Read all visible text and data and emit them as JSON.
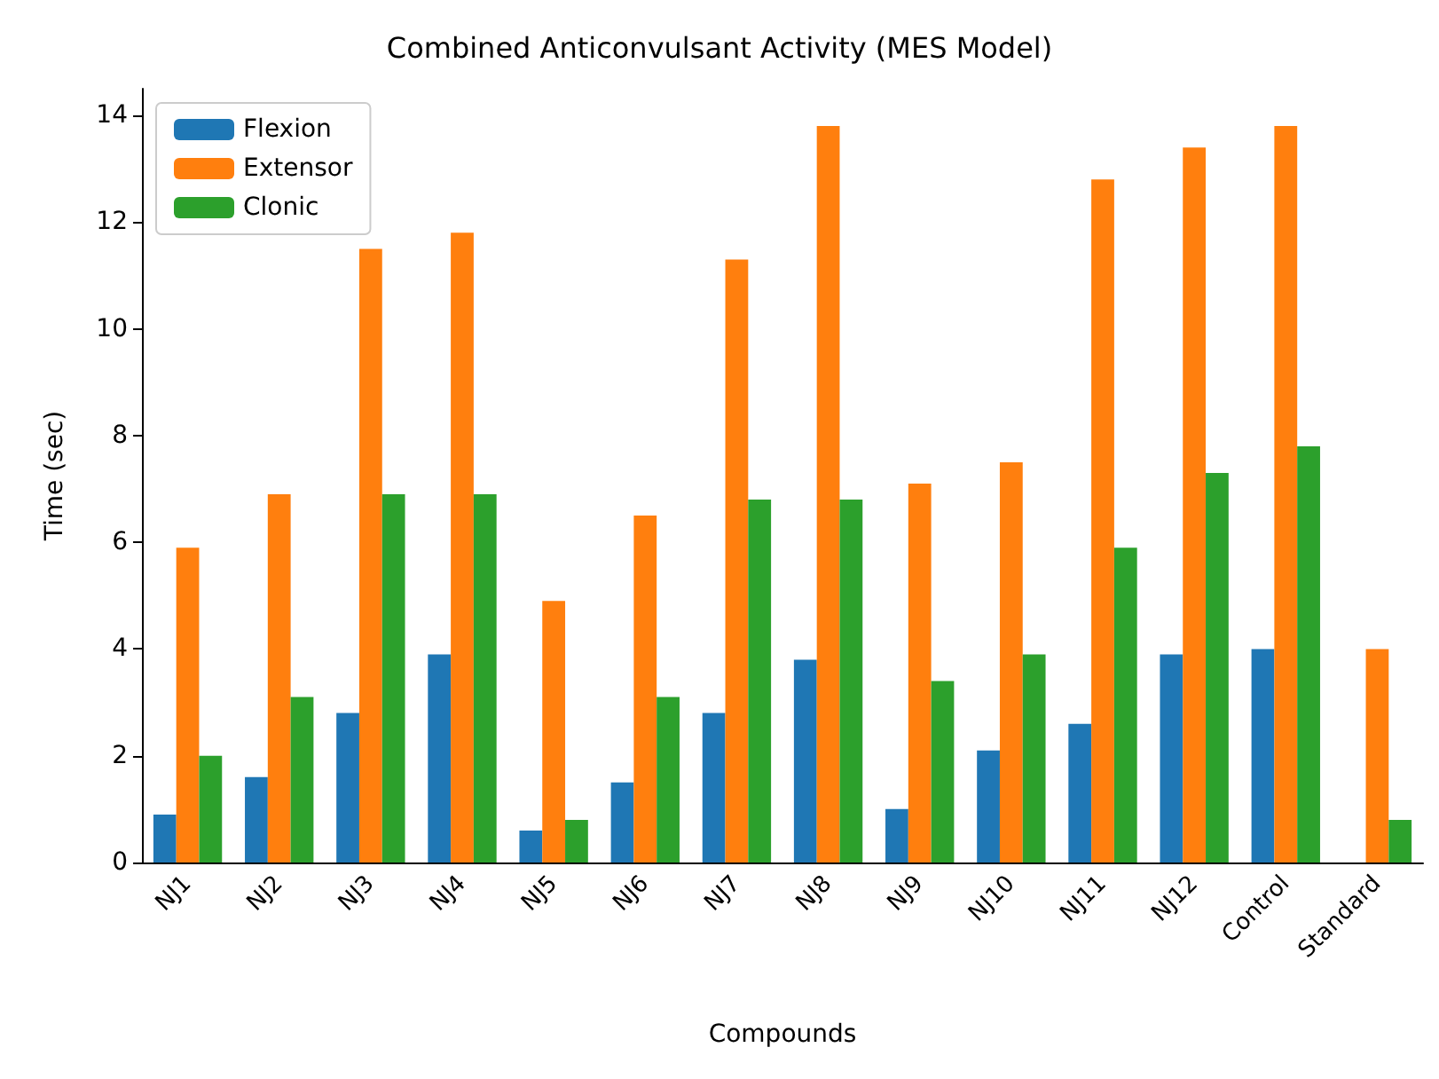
{
  "chart_data": {
    "type": "bar",
    "title": "Combined Anticonvulsant Activity (MES Model)",
    "xlabel": "Compounds",
    "ylabel": "Time (sec)",
    "categories": [
      "NJ1",
      "NJ2",
      "NJ3",
      "NJ4",
      "NJ5",
      "NJ6",
      "NJ7",
      "NJ8",
      "NJ9",
      "NJ10",
      "NJ11",
      "NJ12",
      "Control",
      "Standard"
    ],
    "series": [
      {
        "name": "Flexion",
        "color": "#1f77b4",
        "values": [
          0.9,
          1.6,
          2.8,
          3.9,
          0.6,
          1.5,
          2.8,
          3.8,
          1.0,
          2.1,
          2.6,
          3.9,
          4.0,
          0
        ]
      },
      {
        "name": "Extensor",
        "color": "#ff7f0e",
        "values": [
          5.9,
          6.9,
          11.5,
          11.8,
          4.9,
          6.5,
          11.3,
          13.8,
          7.1,
          7.5,
          12.8,
          13.4,
          13.8,
          4.0
        ]
      },
      {
        "name": "Clonic",
        "color": "#2ca02c",
        "values": [
          2.0,
          3.1,
          6.9,
          6.9,
          0.8,
          3.1,
          6.8,
          6.8,
          3.4,
          3.9,
          5.9,
          7.3,
          7.8,
          0.8
        ]
      }
    ],
    "ylim": [
      0,
      14.5
    ],
    "yticks": [
      0,
      2,
      4,
      6,
      8,
      10,
      12,
      14
    ],
    "grid": false,
    "legend": "top left"
  }
}
